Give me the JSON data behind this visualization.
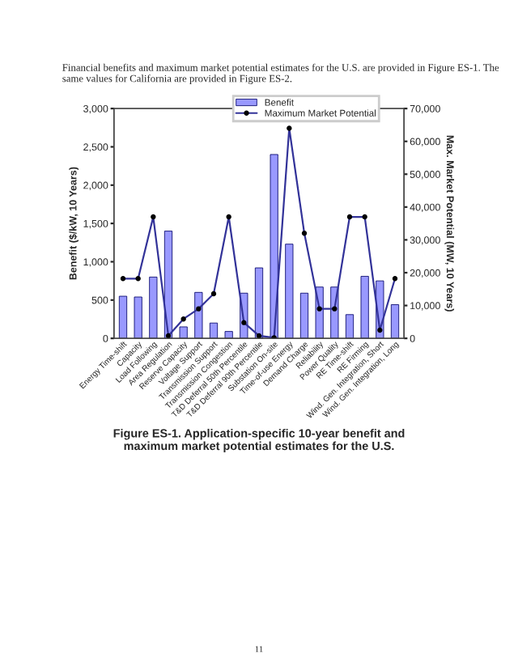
{
  "chart_data": {
    "type": "bar",
    "title": "Figure ES-1. Application-specific 10-year benefit and\nmaximum market potential estimates for the U.S.",
    "xlabel": null,
    "ylabel": "Benefit ($/kW, 10 Years)",
    "y2label": "Max. Market Potential (MW, 10 Years)",
    "categories": [
      "Energy Time-shift",
      "Capacity",
      "Load Following",
      "Area Regulation",
      "Reserve Capacity",
      "Voltage Support",
      "Transmission Support",
      "Transmission Congestion",
      "T&D Deferral 50th Percentile",
      "T&D Deferral 90th Percentile",
      "Substation On-site",
      "Time-of-use Energy",
      "Demand Charge",
      "Reliability",
      "Power Quality",
      "RE Time-shift",
      "RE Firming",
      "Wind. Gen. Integration, Short",
      "Wind. Gen. Integration, Long"
    ],
    "series": [
      {
        "name": "Benefit",
        "color": "#9999ff",
        "values": [
          550,
          540,
          800,
          1400,
          150,
          600,
          200,
          90,
          590,
          920,
          2400,
          1230,
          590,
          670,
          670,
          310,
          810,
          750,
          440
        ]
      },
      {
        "name": "Maximum Market Potential",
        "type": "line",
        "axis": "y2",
        "color": "#333399",
        "marker": "circle",
        "values": [
          18200,
          18200,
          37000,
          800,
          5900,
          9000,
          13600,
          37000,
          4800,
          800,
          200,
          64000,
          32000,
          9000,
          9000,
          37000,
          37000,
          2500,
          18200
        ]
      }
    ],
    "ylim": [
      0,
      3000
    ],
    "yticks": [
      {
        "value": 0,
        "label": "0"
      },
      {
        "value": 500,
        "label": "500"
      },
      {
        "value": 1000,
        "label": "1,000"
      },
      {
        "value": 1500,
        "label": "1,500"
      },
      {
        "value": 2000,
        "label": "2,000"
      },
      {
        "value": 2500,
        "label": "2,500"
      },
      {
        "value": 3000,
        "label": "3,000"
      }
    ],
    "y2lim": [
      0,
      70000
    ],
    "y2ticks": [
      {
        "value": 0,
        "label": "0"
      },
      {
        "value": 10000,
        "label": "10,000"
      },
      {
        "value": 20000,
        "label": "20,000"
      },
      {
        "value": 30000,
        "label": "30,000"
      },
      {
        "value": 40000,
        "label": "40,000"
      },
      {
        "value": 50000,
        "label": "50,000"
      },
      {
        "value": 60000,
        "label": "60,000"
      },
      {
        "value": 70000,
        "label": "70,000"
      }
    ],
    "legend": "top right",
    "grid": false,
    "annotations": [
      "Financial benefits and maximum market potential estimates for the U.S. are provided in Figure ES-1. The same values for California are provided in Figure ES-2.",
      "11"
    ]
  }
}
